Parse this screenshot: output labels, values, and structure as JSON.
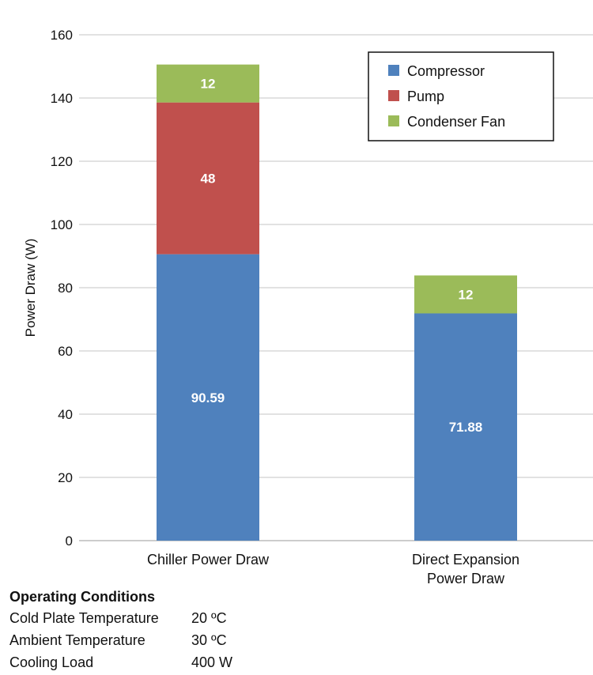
{
  "chart_data": {
    "type": "bar",
    "stacked": true,
    "title": "",
    "xlabel": "",
    "ylabel": "Power Draw (W)",
    "ylim": [
      0,
      160
    ],
    "yticks": [
      0,
      20,
      40,
      60,
      80,
      100,
      120,
      140,
      160
    ],
    "grid": true,
    "legend_position": "top-right",
    "categories": [
      "Chiller Power Draw",
      "Direct Expansion Power Draw"
    ],
    "category_lines": [
      [
        "Chiller Power Draw"
      ],
      [
        "Direct Expansion",
        "Power Draw"
      ]
    ],
    "series": [
      {
        "name": "Compressor",
        "color": "#4f81bd",
        "values": [
          90.59,
          71.88
        ],
        "labels": [
          "90.59",
          "71.88"
        ]
      },
      {
        "name": "Pump",
        "color": "#c0504d",
        "values": [
          48,
          0
        ],
        "labels": [
          "48",
          ""
        ]
      },
      {
        "name": "Condenser Fan",
        "color": "#9bbb59",
        "values": [
          12,
          12
        ],
        "labels": [
          "12",
          "12"
        ]
      }
    ]
  },
  "conditions": {
    "title": "Operating Conditions",
    "rows": [
      {
        "label": "Cold Plate Temperature",
        "value": "20 ºC"
      },
      {
        "label": "Ambient Temperature",
        "value": "30 ºC"
      },
      {
        "label": "Cooling Load",
        "value": "400 W"
      }
    ]
  }
}
